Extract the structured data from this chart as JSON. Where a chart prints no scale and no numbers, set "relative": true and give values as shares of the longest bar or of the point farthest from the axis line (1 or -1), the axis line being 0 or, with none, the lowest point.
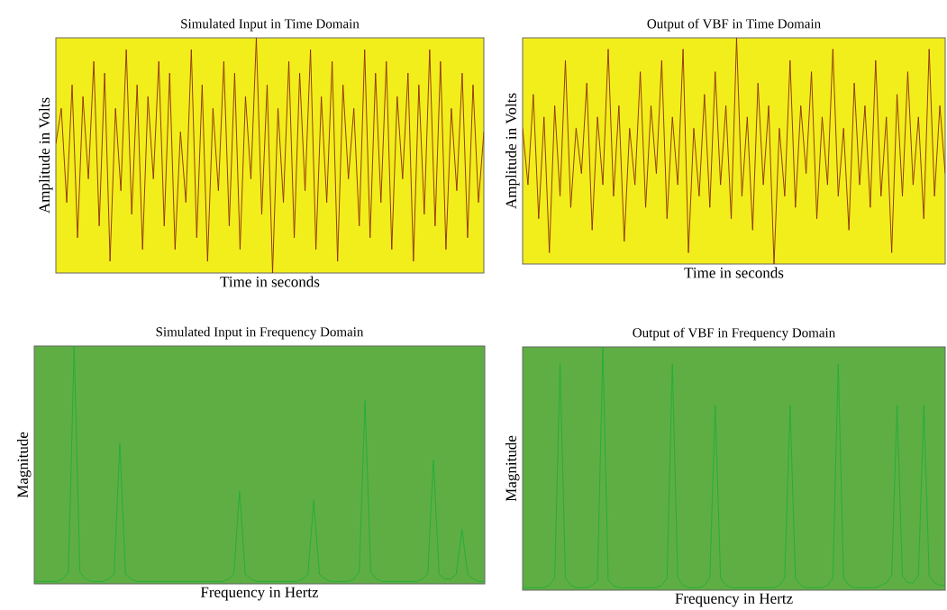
{
  "chart_data": [
    {
      "type": "line",
      "title": "Simulated Input in Time Domain",
      "xlabel": "Time in seconds",
      "ylabel": "Amplitude in Volts",
      "relative": true,
      "categories": [
        null,
        null,
        null,
        null,
        null,
        null,
        null,
        null,
        null,
        null,
        null,
        null,
        null,
        null,
        null,
        null,
        null,
        null,
        null,
        null,
        null,
        null,
        null,
        null,
        null,
        null,
        null,
        null,
        null,
        null,
        null,
        null,
        null,
        null,
        null,
        null,
        null,
        null,
        null,
        null,
        null,
        null,
        null,
        null,
        null,
        null,
        null,
        null,
        null,
        null,
        null,
        null,
        null,
        null,
        null,
        null,
        null,
        null,
        null,
        null,
        null,
        null,
        null,
        null,
        null,
        null,
        null,
        null,
        null,
        null,
        null,
        null,
        null,
        null,
        null,
        null,
        null,
        null,
        null,
        null
      ],
      "series": [
        {
          "color": "#8b2a0a",
          "values": [
            0.55,
            0.7,
            0.3,
            0.8,
            0.15,
            0.75,
            0.4,
            0.9,
            0.2,
            0.85,
            0.05,
            0.7,
            0.35,
            0.95,
            0.25,
            0.8,
            0.1,
            0.75,
            0.4,
            0.9,
            0.2,
            0.85,
            0.1,
            0.6,
            0.3,
            0.95,
            0.15,
            0.8,
            0.05,
            0.7,
            0.35,
            0.9,
            0.2,
            0.85,
            0.1,
            0.75,
            0.4,
            1.0,
            0.25,
            0.8,
            0.0,
            0.7,
            0.3,
            0.9,
            0.15,
            0.85,
            0.35,
            0.95,
            0.1,
            0.75,
            0.3,
            0.9,
            0.05,
            0.8,
            0.4,
            0.7,
            0.2,
            0.95,
            0.15,
            0.85,
            0.3,
            0.9,
            0.1,
            0.75,
            0.4,
            0.85,
            0.05,
            0.8,
            0.25,
            0.95,
            0.2,
            0.9,
            0.1,
            0.7,
            0.35,
            0.85,
            0.15,
            0.8,
            0.3,
            0.6
          ]
        }
      ]
    },
    {
      "type": "line",
      "title": "Output of VBF in Time Domain",
      "xlabel": "Time in seconds",
      "ylabel": "Amplitude in Volts",
      "relative": true,
      "categories": [
        null,
        null,
        null,
        null,
        null,
        null,
        null,
        null,
        null,
        null,
        null,
        null,
        null,
        null,
        null,
        null,
        null,
        null,
        null,
        null,
        null,
        null,
        null,
        null,
        null,
        null,
        null,
        null,
        null,
        null,
        null,
        null,
        null,
        null,
        null,
        null,
        null,
        null,
        null,
        null,
        null,
        null,
        null,
        null,
        null,
        null,
        null,
        null,
        null,
        null,
        null,
        null,
        null,
        null,
        null,
        null,
        null,
        null,
        null,
        null,
        null,
        null,
        null,
        null,
        null,
        null,
        null,
        null,
        null,
        null,
        null,
        null,
        null,
        null,
        null,
        null,
        null,
        null,
        null,
        null
      ],
      "series": [
        {
          "color": "#8b2a0a",
          "values": [
            0.6,
            0.35,
            0.75,
            0.2,
            0.65,
            0.05,
            0.7,
            0.3,
            0.9,
            0.25,
            0.6,
            0.4,
            0.8,
            0.15,
            0.65,
            0.35,
            0.95,
            0.3,
            0.7,
            0.1,
            0.6,
            0.35,
            0.85,
            0.25,
            0.7,
            0.4,
            0.9,
            0.2,
            0.65,
            0.35,
            0.95,
            0.05,
            0.6,
            0.3,
            0.75,
            0.25,
            0.85,
            0.35,
            0.7,
            0.2,
            1.0,
            0.3,
            0.65,
            0.15,
            0.8,
            0.35,
            0.7,
            0.0,
            0.6,
            0.3,
            0.9,
            0.25,
            0.7,
            0.4,
            0.85,
            0.2,
            0.65,
            0.35,
            0.95,
            0.3,
            0.6,
            0.15,
            0.8,
            0.35,
            0.7,
            0.25,
            0.9,
            0.3,
            0.65,
            0.05,
            0.75,
            0.3,
            0.85,
            0.35,
            0.65,
            0.2,
            0.95,
            0.3,
            0.7,
            0.4
          ]
        }
      ]
    },
    {
      "type": "line",
      "title": "Simulated Input in Frequency Domain",
      "xlabel": "Frequency in Hertz",
      "ylabel": "Magnitude",
      "relative": true,
      "categories": [
        null,
        null,
        null,
        null,
        null,
        null,
        null,
        null,
        null,
        null,
        null,
        null,
        null,
        null,
        null,
        null,
        null,
        null,
        null,
        null,
        null,
        null,
        null,
        null,
        null,
        null,
        null,
        null,
        null,
        null,
        null,
        null,
        null,
        null,
        null,
        null,
        null,
        null,
        null,
        null,
        null,
        null,
        null,
        null,
        null,
        null,
        null,
        null,
        null,
        null,
        null,
        null,
        null,
        null,
        null,
        null,
        null,
        null,
        null,
        null,
        null,
        null,
        null,
        null,
        null,
        null,
        null,
        null,
        null,
        null,
        null,
        null,
        null,
        null,
        null,
        null,
        null,
        null,
        null,
        null
      ],
      "series": [
        {
          "color": "#1fae3a",
          "values": [
            0.01,
            0.01,
            0.01,
            0.01,
            0.01,
            0.02,
            0.05,
            1.0,
            0.05,
            0.02,
            0.01,
            0.01,
            0.01,
            0.02,
            0.04,
            0.59,
            0.04,
            0.02,
            0.01,
            0.01,
            0.01,
            0.01,
            0.01,
            0.01,
            0.01,
            0.01,
            0.01,
            0.01,
            0.01,
            0.01,
            0.01,
            0.01,
            0.01,
            0.01,
            0.02,
            0.04,
            0.39,
            0.04,
            0.02,
            0.01,
            0.01,
            0.01,
            0.01,
            0.01,
            0.01,
            0.01,
            0.01,
            0.02,
            0.04,
            0.35,
            0.04,
            0.02,
            0.01,
            0.01,
            0.01,
            0.01,
            0.02,
            0.05,
            0.77,
            0.05,
            0.02,
            0.01,
            0.01,
            0.01,
            0.01,
            0.01,
            0.01,
            0.01,
            0.02,
            0.04,
            0.52,
            0.04,
            0.02,
            0.02,
            0.04,
            0.23,
            0.04,
            0.02,
            0.01,
            0.01
          ]
        }
      ]
    },
    {
      "type": "line",
      "title": "Output of VBF in Frequency Domain",
      "xlabel": "Frequency in Hertz",
      "ylabel": "Magnitude",
      "relative": true,
      "categories": [
        null,
        null,
        null,
        null,
        null,
        null,
        null,
        null,
        null,
        null,
        null,
        null,
        null,
        null,
        null,
        null,
        null,
        null,
        null,
        null,
        null,
        null,
        null,
        null,
        null,
        null,
        null,
        null,
        null,
        null,
        null,
        null,
        null,
        null,
        null,
        null,
        null,
        null,
        null,
        null,
        null,
        null,
        null,
        null,
        null,
        null,
        null,
        null,
        null,
        null,
        null,
        null,
        null,
        null,
        null,
        null,
        null,
        null,
        null,
        null,
        null,
        null,
        null,
        null,
        null,
        null,
        null,
        null,
        null,
        null,
        null,
        null,
        null,
        null,
        null,
        null,
        null,
        null,
        null,
        null
      ],
      "series": [
        {
          "color": "#1fae3a",
          "values": [
            0.01,
            0.01,
            0.01,
            0.01,
            0.01,
            0.02,
            0.05,
            0.93,
            0.05,
            0.02,
            0.01,
            0.01,
            0.01,
            0.02,
            0.04,
            1.0,
            0.04,
            0.02,
            0.01,
            0.01,
            0.01,
            0.01,
            0.01,
            0.01,
            0.01,
            0.01,
            0.02,
            0.05,
            0.93,
            0.05,
            0.02,
            0.01,
            0.01,
            0.01,
            0.02,
            0.05,
            0.76,
            0.05,
            0.02,
            0.01,
            0.01,
            0.01,
            0.01,
            0.01,
            0.01,
            0.01,
            0.01,
            0.01,
            0.02,
            0.05,
            0.76,
            0.05,
            0.02,
            0.01,
            0.01,
            0.01,
            0.01,
            0.02,
            0.05,
            0.93,
            0.05,
            0.02,
            0.01,
            0.01,
            0.01,
            0.01,
            0.01,
            0.02,
            0.03,
            0.06,
            0.76,
            0.06,
            0.03,
            0.03,
            0.06,
            0.76,
            0.06,
            0.03,
            0.02,
            0.02
          ]
        }
      ]
    }
  ]
}
